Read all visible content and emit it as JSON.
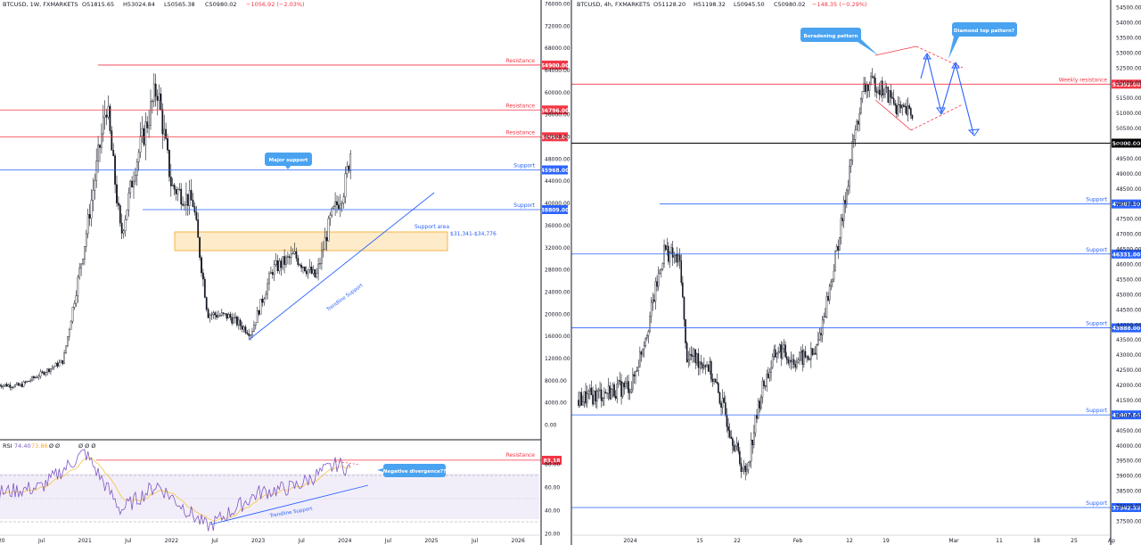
{
  "left_panel": {
    "header": {
      "symbol": "BTCUSD, 1W, FXMARKETS",
      "o": "O51815.65",
      "h": "H53024.84",
      "l": "L50565.38",
      "c": "C50980.02",
      "chg": "−1056.92 (−2.03%)"
    },
    "y_ticks": [
      "76000.00",
      "72000.00",
      "68000.00",
      "64000.00",
      "60000.00",
      "56000.00",
      "52000.00",
      "48000.00",
      "44000.00",
      "40000.00",
      "36000.00",
      "32000.00",
      "28000.00",
      "24000.00",
      "20000.00",
      "16000.00",
      "12000.00",
      "8000.00",
      "4000.00",
      "0.00"
    ],
    "x_ticks": [
      "2020",
      "Jul",
      "2021",
      "Jul",
      "2022",
      "Jul",
      "2023",
      "Jul",
      "2024",
      "Jul",
      "2025",
      "Jul",
      "2026"
    ],
    "levels": [
      {
        "type": "resistance",
        "label": "Resistance",
        "value": "64900.00",
        "color": "#f23645"
      },
      {
        "type": "resistance",
        "label": "Resistance",
        "value": "56796.00",
        "color": "#f23645"
      },
      {
        "type": "resistance",
        "label": "Resistance",
        "value": "51952.84",
        "color": "#f23645"
      },
      {
        "type": "support",
        "label": "Support",
        "value": "45968.00",
        "color": "#2962ff"
      },
      {
        "type": "support",
        "label": "Support",
        "value": "38809.00",
        "color": "#2962ff"
      }
    ],
    "support_area": {
      "title": "Support area",
      "range": "$31,341-$34,776"
    },
    "callouts": {
      "major_support": "Major support",
      "trendline": "Trendline Support"
    },
    "rsi": {
      "header": {
        "name": "RSI",
        "v1": "74.40",
        "v2": "73.86",
        "v3": "Ø",
        "v4": "Ø"
      },
      "markers": "Ø  Ø  Ø",
      "y_ticks": [
        "80.00",
        "60.00",
        "40.00",
        "20.00"
      ],
      "resistance_label": "Resistance",
      "resistance_value": "83.18",
      "divergence_callout": "Negative divergence??",
      "trendline": "Trendline Support"
    }
  },
  "right_panel": {
    "header": {
      "symbol": "BTCUSD, 4h, FXMARKETS",
      "o": "O51128.20",
      "h": "H51198.32",
      "l": "L50945.50",
      "c": "C50980.02",
      "chg": "−148.35 (−0.29%)"
    },
    "y_ticks": [
      "54500.00",
      "54000.00",
      "53500.00",
      "53000.00",
      "52500.00",
      "52000.00",
      "51500.00",
      "51000.00",
      "50500.00",
      "50000.00",
      "49500.00",
      "49000.00",
      "48500.00",
      "48000.00",
      "47500.00",
      "47000.00",
      "46500.00",
      "46000.00",
      "45500.00",
      "45000.00",
      "44500.00",
      "44000.00",
      "43500.00",
      "43000.00",
      "42500.00",
      "42000.00",
      "41500.00",
      "41000.00",
      "40500.00",
      "40000.00",
      "39500.00",
      "39000.00",
      "38500.00",
      "38000.00",
      "37500.00"
    ],
    "x_ticks": [
      "2024",
      "15",
      "22",
      "Feb",
      "12",
      "19",
      "Mar",
      "11",
      "18",
      "25",
      "Ap"
    ],
    "levels": [
      {
        "label": "Weekly resistance",
        "value": "51952.00",
        "color": "#f23645"
      },
      {
        "label": "",
        "value": "50000.00",
        "color": "#000000"
      },
      {
        "label": "Support",
        "value": "47987.30",
        "color": "#2962ff"
      },
      {
        "label": "Support",
        "value": "46331.00",
        "color": "#2962ff"
      },
      {
        "label": "Support",
        "value": "43888.00",
        "color": "#2962ff"
      },
      {
        "label": "Support",
        "value": "41007.84",
        "color": "#2962ff"
      },
      {
        "label": "Support",
        "value": "37942.33",
        "color": "#2962ff"
      }
    ],
    "callouts": {
      "broadening": "Boradening pattern",
      "diamond": "Diamond top pattern?"
    }
  },
  "chart_data": [
    {
      "type": "candlestick",
      "title": "BTCUSD, 1W, FXMARKETS",
      "ylim": [
        0,
        76000
      ],
      "x_range": [
        "2020",
        "2026"
      ],
      "horizontal_levels": [
        64900.0,
        56796.0,
        51952.84,
        45968.0,
        38809.0
      ],
      "support_area": [
        31341,
        34776
      ],
      "close_path": [
        [
          "2020-01",
          7200
        ],
        [
          "2020-04",
          7000
        ],
        [
          "2020-07",
          9200
        ],
        [
          "2020-10",
          11500
        ],
        [
          "2021-01",
          33000
        ],
        [
          "2021-04",
          58000
        ],
        [
          "2021-06",
          34000
        ],
        [
          "2021-08",
          47000
        ],
        [
          "2021-11",
          61000
        ],
        [
          "2022-01",
          43000
        ],
        [
          "2022-04",
          40000
        ],
        [
          "2022-06",
          20000
        ],
        [
          "2022-09",
          19500
        ],
        [
          "2022-12",
          16500
        ],
        [
          "2023-03",
          28000
        ],
        [
          "2023-06",
          30500
        ],
        [
          "2023-09",
          26500
        ],
        [
          "2023-11",
          37000
        ],
        [
          "2024-01",
          43000
        ],
        [
          "2024-02",
          51000
        ]
      ]
    },
    {
      "type": "line",
      "title": "RSI",
      "ylim": [
        20,
        100
      ],
      "resistance": 83.18,
      "values_path": [
        [
          "2020-01",
          55
        ],
        [
          "2020-07",
          60
        ],
        [
          "2021-01",
          90
        ],
        [
          "2021-06",
          40
        ],
        [
          "2021-11",
          62
        ],
        [
          "2022-06",
          25
        ],
        [
          "2023-01",
          55
        ],
        [
          "2023-06",
          60
        ],
        [
          "2023-12",
          80
        ],
        [
          "2024-02",
          74.4
        ]
      ]
    },
    {
      "type": "candlestick",
      "title": "BTCUSD, 4h, FXMARKETS",
      "ylim": [
        37500,
        54500
      ],
      "horizontal_levels": [
        51952.0,
        50000.0,
        47987.3,
        46331.0,
        43888.0,
        41007.84,
        37942.33
      ],
      "close_path": [
        [
          "2024-01-02",
          42000
        ],
        [
          "2024-01-05",
          44000
        ],
        [
          "2024-01-08",
          46500
        ],
        [
          "2024-01-11",
          46000
        ],
        [
          "2024-01-12",
          43000
        ],
        [
          "2024-01-16",
          42700
        ],
        [
          "2024-01-19",
          41200
        ],
        [
          "2024-01-22",
          39500
        ],
        [
          "2024-01-23",
          39000
        ],
        [
          "2024-01-26",
          41800
        ],
        [
          "2024-01-29",
          43200
        ],
        [
          "2024-02-01",
          42800
        ],
        [
          "2024-02-05",
          43000
        ],
        [
          "2024-02-08",
          45500
        ],
        [
          "2024-02-10",
          47500
        ],
        [
          "2024-02-12",
          50000
        ],
        [
          "2024-02-14",
          51800
        ],
        [
          "2024-02-16",
          52000
        ],
        [
          "2024-02-19",
          51500
        ],
        [
          "2024-02-21",
          51000
        ],
        [
          "2024-02-23",
          50980
        ]
      ]
    }
  ]
}
